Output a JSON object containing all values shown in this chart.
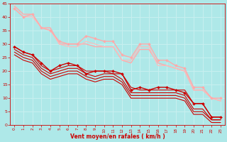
{
  "background_color": "#aee8e8",
  "grid_color": "#c8f0f0",
  "xlabel": "Vent moyen/en rafales ( km/h )",
  "xlabel_color": "#cc0000",
  "tick_color": "#cc0000",
  "xlim": [
    -0.5,
    23.5
  ],
  "ylim": [
    0,
    45
  ],
  "yticks": [
    0,
    5,
    10,
    15,
    20,
    25,
    30,
    35,
    40,
    45
  ],
  "xticks": [
    0,
    1,
    2,
    3,
    4,
    5,
    6,
    7,
    8,
    9,
    10,
    11,
    12,
    13,
    14,
    15,
    16,
    17,
    18,
    19,
    20,
    21,
    22,
    23
  ],
  "lines": [
    {
      "x": [
        0,
        1,
        2,
        3,
        4,
        5,
        6,
        7,
        8,
        9,
        10,
        11,
        12,
        13,
        14,
        15,
        16,
        17,
        18,
        19,
        20,
        21,
        22,
        23
      ],
      "y": [
        44,
        41,
        41,
        36,
        36,
        30,
        30,
        30,
        30,
        29,
        29,
        29,
        24,
        23,
        28,
        28,
        23,
        22,
        21,
        20,
        13,
        13,
        10,
        9
      ],
      "color": "#ffaaaa",
      "marker": null,
      "lw": 1.0
    },
    {
      "x": [
        0,
        1,
        2,
        3,
        4,
        5,
        6,
        7,
        8,
        9,
        10,
        11,
        12,
        13,
        14,
        15,
        16,
        17,
        18,
        19,
        20,
        21,
        22,
        23
      ],
      "y": [
        43,
        40,
        41,
        36,
        35,
        31,
        30,
        30,
        33,
        32,
        31,
        31,
        26,
        25,
        30,
        30,
        24,
        24,
        22,
        21,
        14,
        14,
        10,
        10
      ],
      "color": "#ffaaaa",
      "marker": "D",
      "markersize": 2,
      "lw": 1.0
    },
    {
      "x": [
        0,
        1,
        2,
        3,
        4,
        5,
        6,
        7,
        8,
        9,
        10,
        11,
        12,
        13,
        14,
        15,
        16,
        17,
        18,
        19,
        20,
        21,
        22,
        23
      ],
      "y": [
        43,
        40,
        40,
        36,
        35,
        30,
        29,
        29,
        31,
        30,
        29,
        29,
        24,
        24,
        29,
        29,
        22,
        22,
        21,
        20,
        13,
        13,
        10,
        9
      ],
      "color": "#ffbbbb",
      "marker": null,
      "lw": 0.8
    },
    {
      "x": [
        0,
        1,
        2,
        3,
        4,
        5,
        6,
        7,
        8,
        9,
        10,
        11,
        12,
        13,
        14,
        15,
        16,
        17,
        18,
        19,
        20,
        21,
        22,
        23
      ],
      "y": [
        29,
        27,
        26,
        22,
        20,
        21,
        22,
        22,
        20,
        20,
        20,
        19,
        19,
        14,
        13,
        13,
        13,
        13,
        13,
        13,
        8,
        8,
        3,
        3
      ],
      "color": "#cc0000",
      "marker": null,
      "lw": 0.8
    },
    {
      "x": [
        0,
        1,
        2,
        3,
        4,
        5,
        6,
        7,
        8,
        9,
        10,
        11,
        12,
        13,
        14,
        15,
        16,
        17,
        18,
        19,
        20,
        21,
        22,
        23
      ],
      "y": [
        29,
        27,
        26,
        23,
        20,
        22,
        23,
        22,
        19,
        20,
        20,
        20,
        19,
        13,
        14,
        13,
        14,
        14,
        13,
        12,
        8,
        8,
        3,
        3
      ],
      "color": "#cc0000",
      "marker": "D",
      "markersize": 2,
      "lw": 1.0
    },
    {
      "x": [
        0,
        1,
        2,
        3,
        4,
        5,
        6,
        7,
        8,
        9,
        10,
        11,
        12,
        13,
        14,
        15,
        16,
        17,
        18,
        19,
        20,
        21,
        22,
        23
      ],
      "y": [
        28,
        26,
        25,
        21,
        19,
        20,
        21,
        21,
        19,
        18,
        19,
        19,
        17,
        12,
        12,
        12,
        12,
        12,
        12,
        11,
        6,
        6,
        2,
        2
      ],
      "color": "#cc0000",
      "marker": null,
      "lw": 0.8
    },
    {
      "x": [
        0,
        1,
        2,
        3,
        4,
        5,
        6,
        7,
        8,
        9,
        10,
        11,
        12,
        13,
        14,
        15,
        16,
        17,
        18,
        19,
        20,
        21,
        22,
        23
      ],
      "y": [
        27,
        25,
        24,
        20,
        18,
        19,
        20,
        20,
        18,
        17,
        18,
        18,
        16,
        11,
        11,
        11,
        11,
        11,
        11,
        10,
        5,
        5,
        2,
        2
      ],
      "color": "#cc0000",
      "marker": null,
      "lw": 0.8
    },
    {
      "x": [
        0,
        1,
        2,
        3,
        4,
        5,
        6,
        7,
        8,
        9,
        10,
        11,
        12,
        13,
        14,
        15,
        16,
        17,
        18,
        19,
        20,
        21,
        22,
        23
      ],
      "y": [
        26,
        24,
        23,
        19,
        17,
        18,
        19,
        19,
        17,
        16,
        17,
        17,
        15,
        10,
        10,
        10,
        10,
        10,
        10,
        9,
        4,
        4,
        1,
        1
      ],
      "color": "#cc0000",
      "marker": null,
      "lw": 0.8
    }
  ]
}
